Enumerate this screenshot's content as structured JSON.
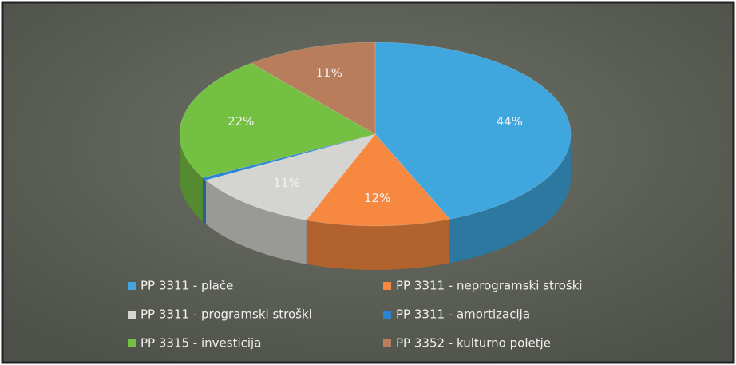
{
  "chart_data": {
    "type": "pie",
    "categories": [
      "PP 3311 - plače",
      "PP 3311 - neprogramski stroški",
      "PP 3311 - programski stroški",
      "PP 3311 - amortizacija",
      "PP 3315 - investicija",
      "PP 3352 - kulturno poletje"
    ],
    "values": [
      44,
      12,
      11,
      0.5,
      22,
      11
    ],
    "value_labels": [
      "44%",
      "12%",
      "11%",
      null,
      "22%",
      "11%"
    ],
    "colors": [
      "#3fa6de",
      "#f7883f",
      "#d4d4d0",
      "#2a86d0",
      "#74c043",
      "#b87e5c"
    ],
    "legend": "bottom"
  }
}
